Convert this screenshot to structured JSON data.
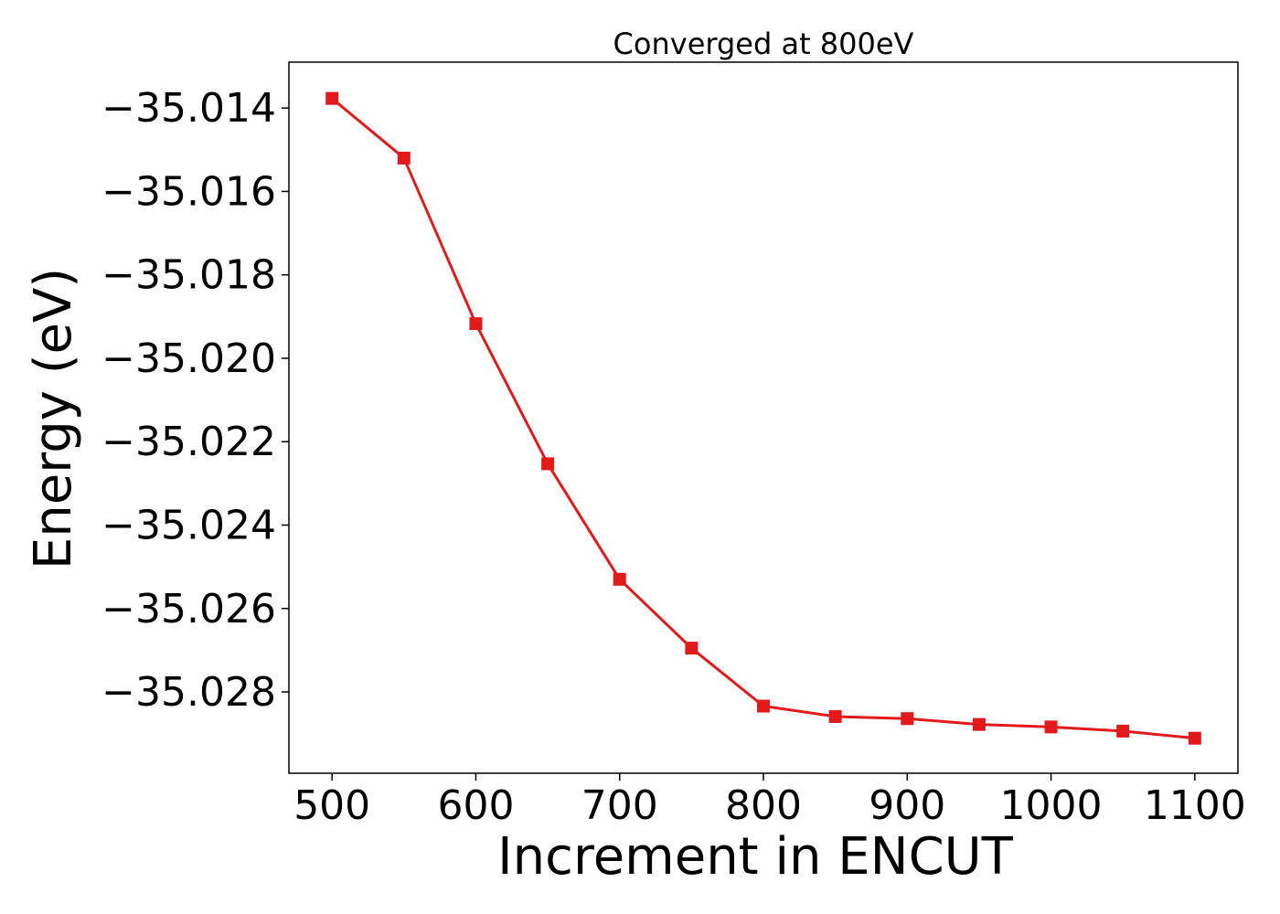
{
  "chart_data": {
    "type": "line",
    "title": "Converged at 800eV",
    "xlabel": "Increment in ENCUT",
    "ylabel": "Energy (eV)",
    "xlim": [
      470,
      1130
    ],
    "ylim": [
      -35.02995,
      -35.0129
    ],
    "xticks": [
      500,
      600,
      700,
      800,
      900,
      1000,
      1100
    ],
    "xtick_labels": [
      "500",
      "600",
      "700",
      "800",
      "900",
      "1000",
      "1100"
    ],
    "yticks": [
      -35.014,
      -35.016,
      -35.018,
      -35.02,
      -35.022,
      -35.024,
      -35.026,
      -35.028
    ],
    "ytick_labels": [
      "−35.014",
      "−35.016",
      "−35.018",
      "−35.020",
      "−35.022",
      "−35.024",
      "−35.026",
      "−35.028"
    ],
    "grid": false,
    "series": [
      {
        "color": "#e31a1c",
        "marker": "square",
        "x": [
          500,
          550,
          600,
          650,
          700,
          750,
          800,
          850,
          900,
          950,
          1000,
          1050,
          1100
        ],
        "y": [
          -35.01377,
          -35.0152,
          -35.01917,
          -35.02253,
          -35.0253,
          -35.02695,
          -35.02834,
          -35.02859,
          -35.02864,
          -35.02878,
          -35.02884,
          -35.02894,
          -35.02911
        ]
      }
    ]
  }
}
